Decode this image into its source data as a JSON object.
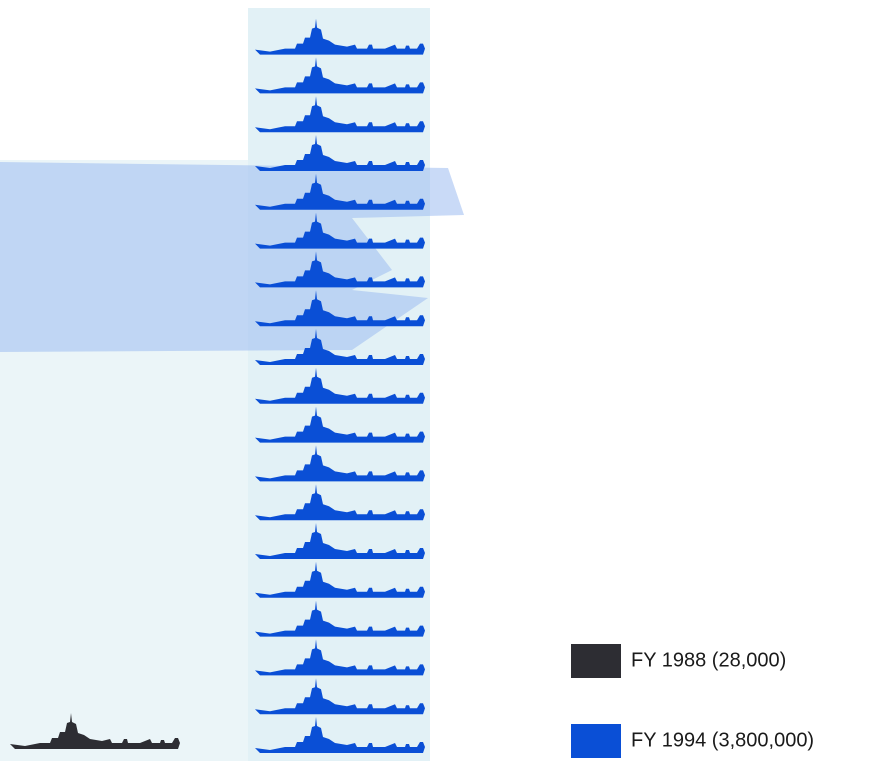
{
  "chart_data": {
    "type": "pictogram",
    "series": [
      {
        "name": "FY 1988 (28,000)",
        "color": "#2d2d33",
        "values": [
          1
        ]
      },
      {
        "name": "FY 1994 (3,800,000)",
        "color": "#0a4fd6",
        "values": [
          19
        ]
      }
    ]
  }
}
